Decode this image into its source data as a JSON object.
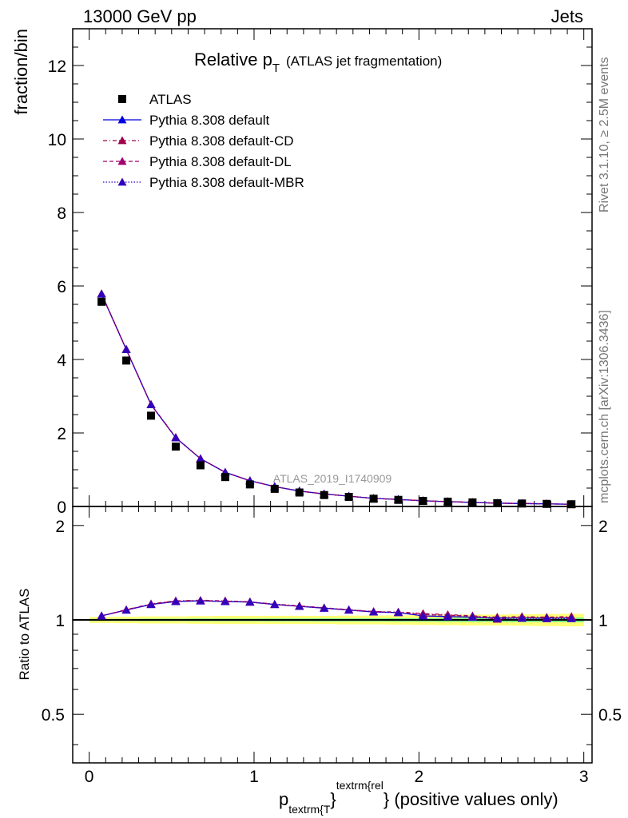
{
  "header": {
    "left": "13000 GeV pp",
    "right": "Jets"
  },
  "side_text": {
    "rivet": "Rivet 3.1.10, ≥ 2.5M events",
    "mcplots": "mcplots.cern.ch [arXiv:1306.3436]"
  },
  "watermark": "ATLAS_2019_I1740909",
  "chart_data": {
    "type": "line",
    "title": "Relative p",
    "title_sub": "T",
    "title_suffix": "(ATLAS jet fragmentation)",
    "ylabel": "fraction/bin",
    "ratio_ylabel": "Ratio to ATLAS",
    "xlabel": {
      "p": "p",
      "sub": "textrm{T",
      "brace": "}",
      "sup": "textrm{rel",
      "tail": "} (positive values only)"
    },
    "xlim": [
      -0.1,
      3.05
    ],
    "ylim": [
      0,
      13
    ],
    "ratio_ylim": [
      0.35,
      2.3
    ],
    "x_ticks": [
      "0",
      "1",
      "2",
      "3"
    ],
    "y_ticks": [
      "0",
      "2",
      "4",
      "6",
      "8",
      "10",
      "12"
    ],
    "ratio_ticks": [
      "0.5",
      "1",
      "2"
    ],
    "x": [
      0.075,
      0.225,
      0.375,
      0.525,
      0.675,
      0.825,
      0.975,
      1.125,
      1.275,
      1.425,
      1.575,
      1.725,
      1.875,
      2.025,
      2.175,
      2.325,
      2.475,
      2.625,
      2.775,
      2.925
    ],
    "legend": [
      {
        "label": "ATLAS",
        "color": "#000000",
        "marker": "square",
        "dash": ""
      },
      {
        "label": "Pythia 8.308 default",
        "color": "#0000dd",
        "marker": "triangle",
        "dash": ""
      },
      {
        "label": "Pythia 8.308 default-CD",
        "color": "#a0004a",
        "marker": "triangle",
        "dash": "5,3,1,3"
      },
      {
        "label": "Pythia 8.308 default-DL",
        "color": "#a0006e",
        "marker": "triangle",
        "dash": "5,3"
      },
      {
        "label": "Pythia 8.308 default-MBR",
        "color": "#3300bb",
        "marker": "triangle",
        "dash": "1.5,2"
      }
    ],
    "data": {
      "name": "ATLAS",
      "values": [
        5.57,
        3.97,
        2.47,
        1.63,
        1.12,
        0.8,
        0.6,
        0.48,
        0.38,
        0.31,
        0.26,
        0.21,
        0.18,
        0.15,
        0.13,
        0.11,
        0.09,
        0.08,
        0.07,
        0.06
      ]
    },
    "series": [
      {
        "name": "Pythia 8.308 default",
        "values": [
          5.78,
          4.27,
          2.77,
          1.87,
          1.3,
          0.93,
          0.7,
          0.54,
          0.42,
          0.34,
          0.28,
          0.22,
          0.19,
          0.155,
          0.13,
          0.11,
          0.09,
          0.08,
          0.07,
          0.06
        ],
        "ratio": [
          1.03,
          1.075,
          1.12,
          1.145,
          1.15,
          1.145,
          1.14,
          1.12,
          1.105,
          1.09,
          1.075,
          1.06,
          1.055,
          1.03,
          1.025,
          1.02,
          1.015,
          1.015,
          1.015,
          1.015
        ]
      },
      {
        "name": "Pythia 8.308 default-CD",
        "values": [
          5.79,
          4.28,
          2.78,
          1.88,
          1.3,
          0.93,
          0.7,
          0.54,
          0.42,
          0.34,
          0.28,
          0.22,
          0.19,
          0.157,
          0.133,
          0.112,
          0.09,
          0.082,
          0.071,
          0.061
        ],
        "ratio": [
          1.03,
          1.078,
          1.125,
          1.15,
          1.155,
          1.15,
          1.142,
          1.123,
          1.108,
          1.093,
          1.078,
          1.063,
          1.06,
          1.048,
          1.04,
          1.03,
          1.02,
          1.025,
          1.02,
          1.025
        ]
      },
      {
        "name": "Pythia 8.308 default-DL",
        "values": [
          5.78,
          4.27,
          2.77,
          1.87,
          1.3,
          0.93,
          0.7,
          0.54,
          0.42,
          0.34,
          0.28,
          0.22,
          0.19,
          0.156,
          0.132,
          0.111,
          0.09,
          0.081,
          0.07,
          0.061
        ],
        "ratio": [
          1.03,
          1.076,
          1.122,
          1.148,
          1.152,
          1.148,
          1.14,
          1.12,
          1.106,
          1.092,
          1.076,
          1.062,
          1.057,
          1.04,
          1.035,
          1.028,
          1.005,
          1.02,
          1.01,
          1.02
        ]
      },
      {
        "name": "Pythia 8.308 default-MBR",
        "values": [
          5.78,
          4.27,
          2.77,
          1.87,
          1.3,
          0.93,
          0.7,
          0.54,
          0.42,
          0.34,
          0.28,
          0.22,
          0.19,
          0.155,
          0.13,
          0.11,
          0.09,
          0.08,
          0.07,
          0.06
        ],
        "ratio": [
          1.03,
          1.075,
          1.12,
          1.145,
          1.15,
          1.145,
          1.14,
          1.12,
          1.105,
          1.09,
          1.075,
          1.06,
          1.055,
          1.03,
          1.025,
          1.02,
          1.01,
          1.012,
          1.01,
          1.01
        ]
      }
    ],
    "grid": false,
    "legend_position": "top-left"
  }
}
